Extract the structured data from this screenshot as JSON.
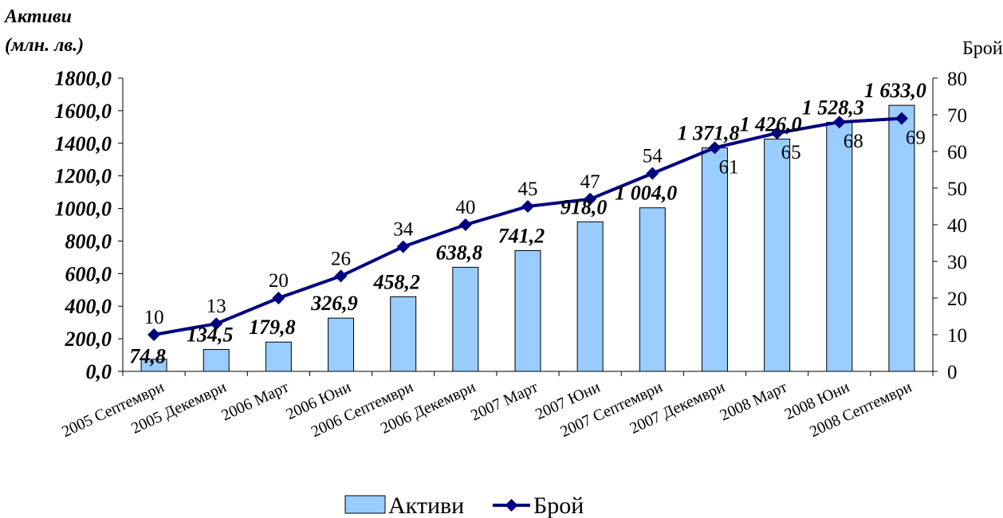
{
  "chart_data": {
    "type": "bar+line",
    "categories": [
      "2005 Септември",
      "2005 Декември",
      "2006 Март",
      "2006 Юни",
      "2006 Септември",
      "2006 Декември",
      "2007 Март",
      "2007 Юни",
      "2007 Септември",
      "2007 Декември",
      "2008 Март",
      "2008 Юни",
      "2008 Септември"
    ],
    "series": [
      {
        "name": "Активи",
        "type": "bar",
        "axis": "left",
        "color": "#99CCFF",
        "values": [
          74.8,
          134.5,
          179.8,
          326.9,
          458.2,
          638.8,
          741.2,
          918.0,
          1004.0,
          1371.8,
          1426.0,
          1528.3,
          1633.0
        ],
        "labels": [
          "74,8",
          "134,5",
          "179,8",
          "326,9",
          "458,2",
          "638,8",
          "741,2",
          "918,0",
          "1 004,0",
          "1 371,8",
          "1 426,0",
          "1 528,3",
          "1 633,0"
        ]
      },
      {
        "name": "Брой",
        "type": "line",
        "axis": "right",
        "color": "#000080",
        "values": [
          10,
          13,
          20,
          26,
          34,
          40,
          45,
          47,
          54,
          61,
          65,
          68,
          69
        ],
        "labels": [
          "10",
          "13",
          "20",
          "26",
          "34",
          "40",
          "45",
          "47",
          "54",
          "61",
          "65",
          "68",
          "69"
        ]
      }
    ],
    "y_left": {
      "label_line1": "Активи",
      "label_line2": "(млн. лв.)",
      "ylim": [
        0,
        1800
      ],
      "ticks": [
        0,
        200,
        400,
        600,
        800,
        1000,
        1200,
        1400,
        1600,
        1800
      ],
      "tick_labels": [
        "0,0",
        "200,0",
        "400,0",
        "600,0",
        "800,0",
        "1000,0",
        "1200,0",
        "1400,0",
        "1600,0",
        "1800,0"
      ]
    },
    "y_right": {
      "label": "Брой",
      "ylim": [
        0,
        80
      ],
      "ticks": [
        0,
        10,
        20,
        30,
        40,
        50,
        60,
        70,
        80
      ],
      "tick_labels": [
        "0",
        "10",
        "20",
        "30",
        "40",
        "50",
        "60",
        "70",
        "80"
      ]
    },
    "grid": false,
    "legend": "bottom-center",
    "colors": {
      "bar_fill": "#99CCFF",
      "bar_stroke": "#000000",
      "line": "#000080",
      "axis": "#000000"
    }
  }
}
